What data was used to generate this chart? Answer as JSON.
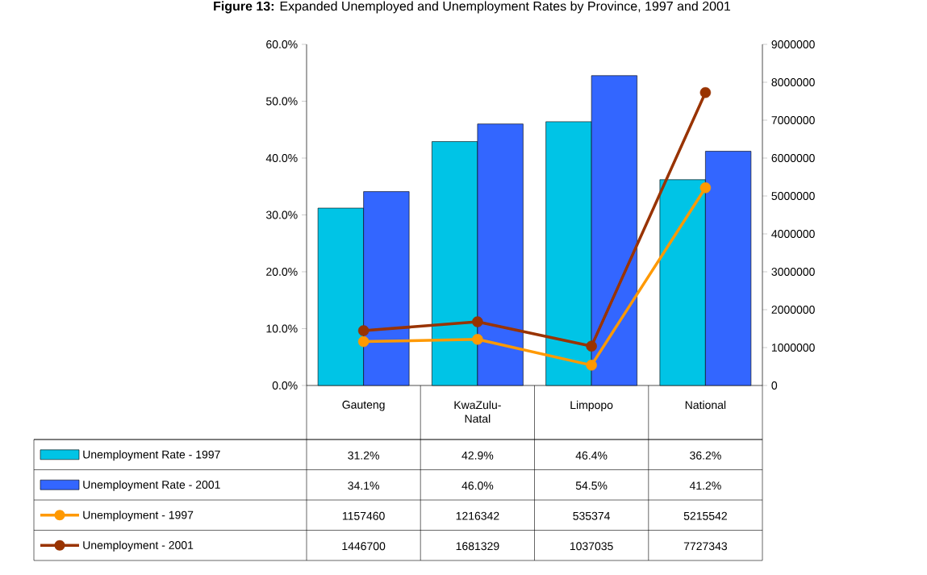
{
  "chart_data": {
    "type": "bar",
    "title": "**Figure 13:** Expanded Unemployed and Unemployment Rates by Province, 1997 and 2001",
    "categories": [
      "Gauteng",
      "KwaZulu-Natal",
      "Limpopo",
      "National"
    ],
    "series": [
      {
        "name": "Unemployment Rate - 1997",
        "color": "#00c4e6",
        "values": [
          31.2,
          42.9,
          46.4,
          36.2
        ],
        "value_labels": [
          "31.2%",
          "42.9%",
          "46.4%",
          "36.2%"
        ]
      },
      {
        "name": "Unemployment Rate - 2001",
        "color": "#3366ff",
        "values": [
          34.1,
          46.0,
          54.5,
          41.2
        ],
        "value_labels": [
          "34.1%",
          "46.0%",
          "54.5%",
          "41.2%"
        ]
      },
      {
        "name": "Unemployment - 1997",
        "type": "line",
        "axis": "y2",
        "color": "#ff9900",
        "values": [
          1157460,
          1216342,
          535374,
          5215542
        ],
        "value_labels": [
          "1157460",
          "1216342",
          "535374",
          "5215542"
        ]
      },
      {
        "name": "Unemployment - 2001",
        "type": "line",
        "axis": "y2",
        "color": "#993300",
        "values": [
          1446700,
          1681329,
          1037035,
          7727343
        ],
        "value_labels": [
          "1446700",
          "1681329",
          "1037035",
          "7727343"
        ]
      }
    ],
    "ylim": [
      0,
      60
    ],
    "yticks": [
      {
        "value": 0,
        "label": "0.0%"
      },
      {
        "value": 10,
        "label": "10.0%"
      },
      {
        "value": 20,
        "label": "20.0%"
      },
      {
        "value": 30,
        "label": "30.0%"
      },
      {
        "value": 40,
        "label": "40.0%"
      },
      {
        "value": 50,
        "label": "50.0%"
      },
      {
        "value": 60,
        "label": "60.0%"
      }
    ],
    "y2lim": [
      0,
      9000000
    ],
    "y2ticks": [
      0,
      1000000,
      2000000,
      3000000,
      4000000,
      5000000,
      6000000,
      7000000,
      8000000,
      9000000
    ],
    "marker": "circle",
    "legend": "bottom",
    "grid": false
  }
}
